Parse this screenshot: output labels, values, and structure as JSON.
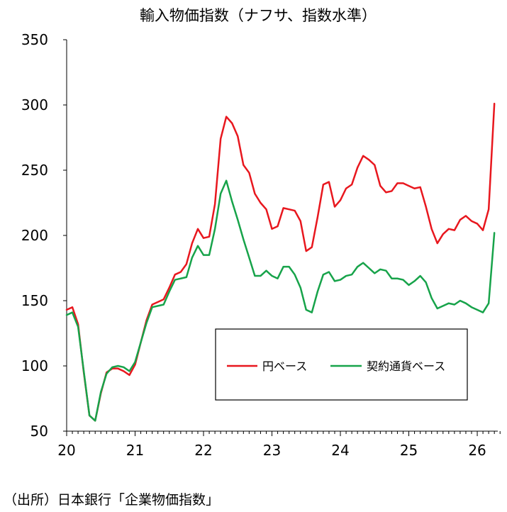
{
  "chart_data": {
    "type": "line",
    "title": "輸入物価指数（ナフサ、指数水準）",
    "xlabel": "",
    "ylabel": "",
    "xlim": [
      2020,
      2026.3
    ],
    "ylim": [
      50,
      350
    ],
    "y_ticks": [
      50,
      100,
      150,
      200,
      250,
      300,
      350
    ],
    "x_tick_labels": [
      "20",
      "21",
      "22",
      "23",
      "24",
      "25",
      "26"
    ],
    "x_ticks": [
      2020,
      2021,
      2022,
      2023,
      2024,
      2025,
      2026
    ],
    "grid": false,
    "legend_position": "center-right",
    "series": [
      {
        "name": "円ベース",
        "color": "#e8171e",
        "x": [
          2020.0,
          2020.083,
          2020.167,
          2020.25,
          2020.333,
          2020.417,
          2020.5,
          2020.583,
          2020.667,
          2020.75,
          2020.833,
          2020.917,
          2021.0,
          2021.083,
          2021.167,
          2021.25,
          2021.333,
          2021.417,
          2021.5,
          2021.583,
          2021.667,
          2021.75,
          2021.833,
          2021.917,
          2022.0,
          2022.083,
          2022.167,
          2022.25,
          2022.333,
          2022.417,
          2022.5,
          2022.583,
          2022.667,
          2022.75,
          2022.833,
          2022.917,
          2023.0,
          2023.083,
          2023.167,
          2023.25,
          2023.333,
          2023.417,
          2023.5,
          2023.583,
          2023.667,
          2023.75,
          2023.833,
          2023.917,
          2024.0,
          2024.083,
          2024.167,
          2024.25,
          2024.333,
          2024.417,
          2024.5,
          2024.583,
          2024.667,
          2024.75,
          2024.833,
          2024.917,
          2025.0,
          2025.083,
          2025.167,
          2025.25,
          2025.333,
          2025.417,
          2025.5,
          2025.583,
          2025.667,
          2025.75,
          2025.833,
          2025.917,
          2026.0,
          2026.083,
          2026.167,
          2026.25
        ],
        "values": [
          143,
          145,
          132,
          95,
          62,
          58,
          79,
          95,
          98,
          98,
          96,
          93,
          101,
          118,
          135,
          147,
          149,
          151,
          160,
          170,
          172,
          178,
          194,
          205,
          198,
          199,
          224,
          274,
          291,
          286,
          276,
          254,
          248,
          232,
          225,
          220,
          205,
          207,
          221,
          220,
          219,
          211,
          188,
          191,
          214,
          239,
          241,
          222,
          227,
          236,
          239,
          252,
          261,
          258,
          254,
          238,
          233,
          234,
          240,
          240,
          238,
          236,
          237,
          222,
          205,
          194,
          201,
          205,
          204,
          212,
          215,
          211,
          209,
          204,
          220,
          301
        ]
      },
      {
        "name": "契約通貨ベース",
        "color": "#17a34a",
        "x": [
          2020.0,
          2020.083,
          2020.167,
          2020.25,
          2020.333,
          2020.417,
          2020.5,
          2020.583,
          2020.667,
          2020.75,
          2020.833,
          2020.917,
          2021.0,
          2021.083,
          2021.167,
          2021.25,
          2021.333,
          2021.417,
          2021.5,
          2021.583,
          2021.667,
          2021.75,
          2021.833,
          2021.917,
          2022.0,
          2022.083,
          2022.167,
          2022.25,
          2022.333,
          2022.417,
          2022.5,
          2022.583,
          2022.667,
          2022.75,
          2022.833,
          2022.917,
          2023.0,
          2023.083,
          2023.167,
          2023.25,
          2023.333,
          2023.417,
          2023.5,
          2023.583,
          2023.667,
          2023.75,
          2023.833,
          2023.917,
          2024.0,
          2024.083,
          2024.167,
          2024.25,
          2024.333,
          2024.417,
          2024.5,
          2024.583,
          2024.667,
          2024.75,
          2024.833,
          2024.917,
          2025.0,
          2025.083,
          2025.167,
          2025.25,
          2025.333,
          2025.417,
          2025.5,
          2025.583,
          2025.667,
          2025.75,
          2025.833,
          2025.917,
          2026.0,
          2026.083,
          2026.167,
          2026.25
        ],
        "values": [
          139,
          141,
          130,
          96,
          62,
          58,
          80,
          94,
          99,
          100,
          99,
          96,
          103,
          118,
          133,
          145,
          146,
          147,
          157,
          166,
          167,
          168,
          183,
          192,
          185,
          185,
          205,
          232,
          242,
          226,
          212,
          197,
          183,
          169,
          169,
          173,
          169,
          167,
          176,
          176,
          170,
          160,
          143,
          141,
          157,
          170,
          172,
          165,
          166,
          169,
          170,
          176,
          179,
          175,
          171,
          174,
          173,
          167,
          167,
          166,
          162,
          165,
          169,
          164,
          152,
          144,
          146,
          148,
          147,
          150,
          148,
          145,
          143,
          141,
          148,
          202
        ]
      }
    ],
    "source": "（出所）日本銀行「企業物価指数」"
  }
}
